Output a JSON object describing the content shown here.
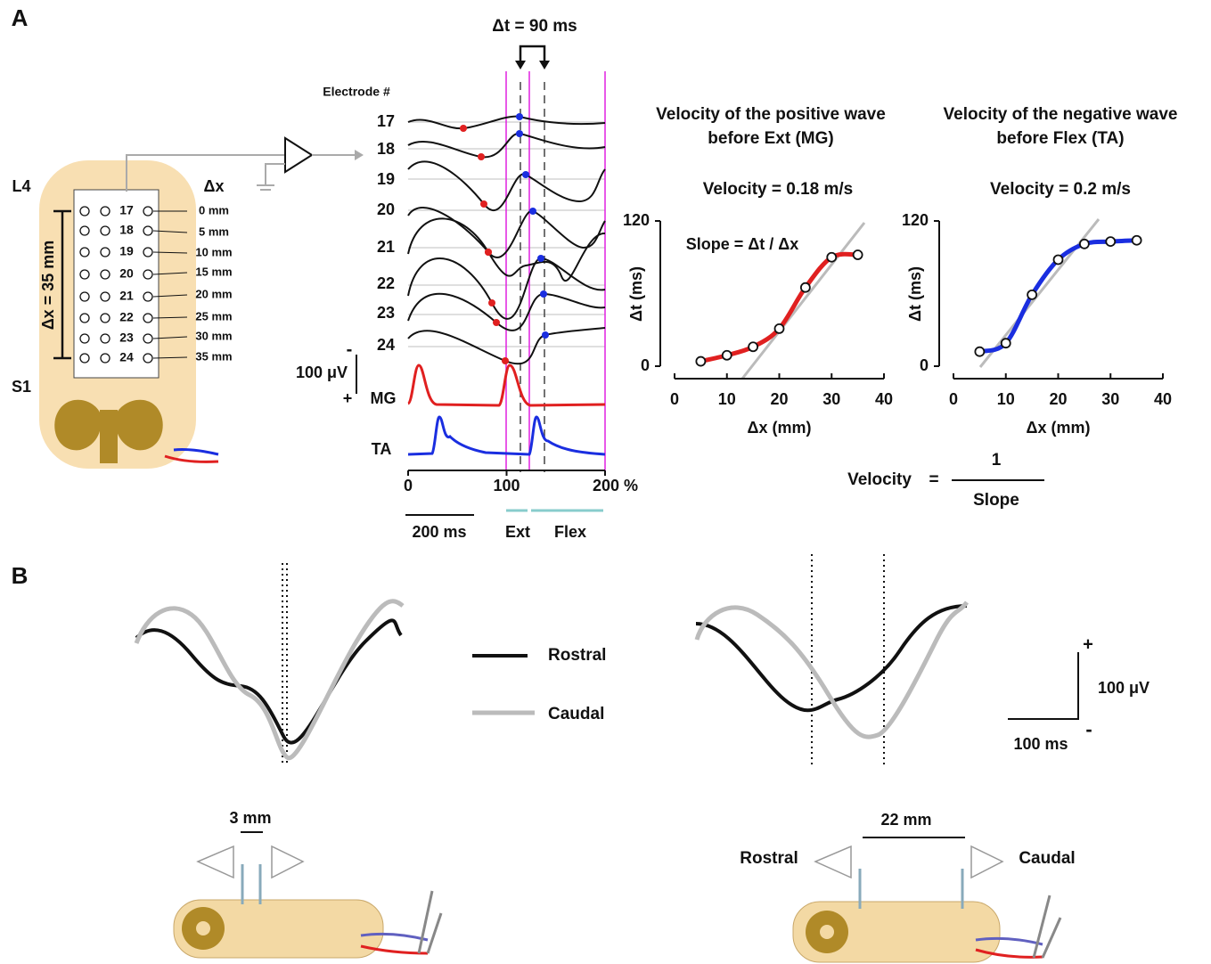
{
  "figure": {
    "panel_a_label": "A",
    "panel_b_label": "B"
  },
  "cord": {
    "top": "L4",
    "bottom": "S1",
    "dx_header": "Δx",
    "span": "Δx = 35 mm",
    "grid_labels": [
      "17",
      "18",
      "19",
      "20",
      "21",
      "22",
      "23",
      "24"
    ],
    "dx_labels": [
      "0 mm",
      "5 mm",
      "10 mm",
      "15 mm",
      "20 mm",
      "25 mm",
      "30 mm",
      "35 mm"
    ]
  },
  "traces": {
    "delta_t_label": "Δt = 90 ms",
    "electrode_header": "Electrode #",
    "electrodes": [
      "17",
      "18",
      "19",
      "20",
      "21",
      "22",
      "23",
      "24"
    ],
    "scale_bar": "100 μV",
    "scale_minus": "-",
    "scale_plus": "+",
    "muscles": [
      "MG",
      "TA"
    ],
    "xlim": [
      0,
      200
    ],
    "xticks": [
      0,
      100,
      {
        "value": 200,
        "label": "200 %"
      }
    ],
    "time_bar": "200 ms",
    "phases": [
      "Ext",
      "Flex"
    ]
  },
  "chart_data": [
    {
      "type": "scatter",
      "title": "Velocity of the positive wave\nbefore Ext (MG)",
      "subtitle": "Velocity  =  0.18 m/s",
      "annotation": "Slope = Δt / Δx",
      "xlabel": "Δx (mm)",
      "ylabel": "Δt (ms)",
      "x": [
        5,
        10,
        15,
        20,
        25,
        30,
        35
      ],
      "values": [
        4,
        9,
        16,
        31,
        65,
        90,
        92
      ],
      "color": "#e02020",
      "xlim": [
        0,
        40
      ],
      "ylim": [
        0,
        120
      ],
      "xticks": [
        0,
        10,
        20,
        30,
        40
      ],
      "yticks": [
        0,
        120
      ]
    },
    {
      "type": "scatter",
      "title": "Velocity of the negative wave\nbefore Flex (TA)",
      "subtitle": "Velocity =  0.2 m/s",
      "xlabel": "Δx (mm)",
      "ylabel": "Δt (ms)",
      "x": [
        5,
        10,
        15,
        20,
        25,
        30,
        35
      ],
      "values": [
        12,
        19,
        59,
        88,
        101,
        103,
        104
      ],
      "color": "#1a2ee0",
      "xlim": [
        0,
        40
      ],
      "ylim": [
        0,
        120
      ],
      "xticks": [
        0,
        10,
        20,
        30,
        40
      ],
      "yticks": [
        0,
        120
      ]
    }
  ],
  "formula": {
    "lhs": "Velocity",
    "equals": "=",
    "numerator": "1",
    "denominator": "Slope"
  },
  "panel_b": {
    "legend": [
      "Rostral",
      "Caudal"
    ],
    "scale_plus": "+",
    "scale_voltage": "100 μV",
    "scale_time": "100 ms",
    "scale_minus": "-",
    "left_distance": "3 mm",
    "right_distance": "22 mm",
    "right_rostral": "Rostral",
    "right_caudal": "Caudal"
  }
}
